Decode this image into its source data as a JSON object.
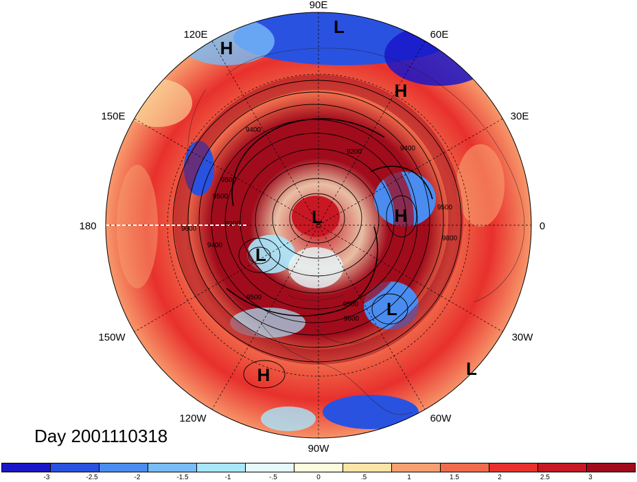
{
  "map": {
    "projection": "polar stereographic (north pole)",
    "longitude_labels": [
      {
        "text": "90E"
      },
      {
        "text": "60E"
      },
      {
        "text": "30E"
      },
      {
        "text": "0"
      },
      {
        "text": "30W"
      },
      {
        "text": "60W"
      },
      {
        "text": "90W"
      },
      {
        "text": "120W"
      },
      {
        "text": "150W"
      },
      {
        "text": "180"
      },
      {
        "text": "150E"
      },
      {
        "text": "120E"
      }
    ],
    "pressure_centers": [
      "L",
      "H",
      "H",
      "L",
      "H",
      "L",
      "L",
      "H",
      "L"
    ],
    "contour_labels": [
      "9400",
      "9200",
      "9500",
      "9500",
      "9400",
      "9200",
      "9500",
      "9600",
      "9500",
      "9600",
      "9400",
      "9500",
      "9800"
    ]
  },
  "day_label": "Day 2001110318",
  "colorbar": {
    "colors": [
      "#1a16c8",
      "#2a52e0",
      "#4a8cf0",
      "#78bcf8",
      "#a8e6fc",
      "#e6f8fc",
      "#fcfcdc",
      "#fce4a4",
      "#f8a070",
      "#f06c4c",
      "#e8302c",
      "#c81824",
      "#a00c1c"
    ],
    "tick_labels": [
      "-3",
      "-2.5",
      "-2",
      "-1.5",
      "-1",
      "-.5",
      "0",
      ".5",
      "1",
      "1.5",
      "2",
      "2.5",
      "3"
    ]
  }
}
